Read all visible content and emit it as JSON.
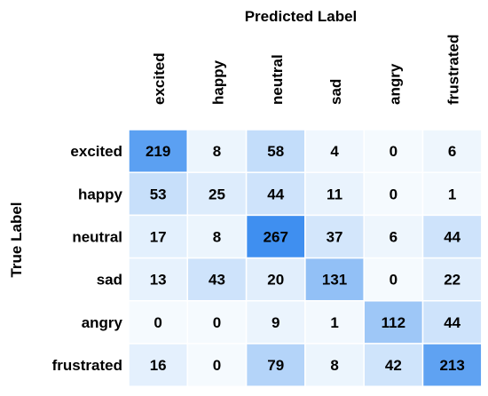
{
  "chart_data": {
    "type": "heatmap",
    "title": "",
    "xlabel": "Predicted Label",
    "ylabel": "True Label",
    "x_categories": [
      "excited",
      "happy",
      "neutral",
      "sad",
      "angry",
      "frustrated"
    ],
    "y_categories": [
      "excited",
      "happy",
      "neutral",
      "sad",
      "angry",
      "frustrated"
    ],
    "values": [
      [
        219,
        8,
        58,
        4,
        0,
        6
      ],
      [
        53,
        25,
        44,
        11,
        0,
        1
      ],
      [
        17,
        8,
        267,
        37,
        6,
        44
      ],
      [
        13,
        43,
        20,
        131,
        0,
        22
      ],
      [
        0,
        0,
        9,
        1,
        112,
        44
      ],
      [
        16,
        0,
        79,
        8,
        42,
        213
      ]
    ],
    "colormap": {
      "low": "#f5fafe",
      "high": "#3f8ff0"
    },
    "legend": "none",
    "grid": false
  }
}
